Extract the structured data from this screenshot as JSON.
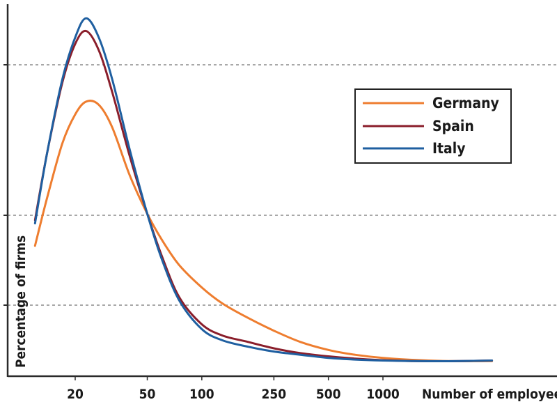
{
  "chart_data": {
    "type": "line",
    "xlabel": "Number of employees",
    "ylabel": "Percentage of firms",
    "x_scale": "log",
    "x_ticks": [
      "20",
      "50",
      "100",
      "250",
      "500",
      "1000"
    ],
    "legend_position": "top-right",
    "grid": "horizontal dashed",
    "series": [
      {
        "name": "Germany",
        "color": "#ee7d2f",
        "x": [
          12,
          14,
          17,
          20,
          23,
          27,
          32,
          40,
          50,
          60,
          75,
          100,
          130,
          180,
          250,
          350,
          500,
          700,
          1000,
          1600,
          2500,
          4000
        ],
        "y": [
          0.37,
          0.52,
          0.69,
          0.78,
          0.82,
          0.81,
          0.74,
          0.59,
          0.47,
          0.39,
          0.31,
          0.24,
          0.19,
          0.145,
          0.105,
          0.07,
          0.045,
          0.03,
          0.02,
          0.013,
          0.01,
          0.01
        ]
      },
      {
        "name": "Spain",
        "color": "#8a1e2b",
        "x": [
          12,
          14,
          17,
          20,
          23,
          27,
          32,
          40,
          50,
          60,
          75,
          100,
          130,
          180,
          250,
          350,
          500,
          700,
          1000,
          1600,
          2500,
          4000
        ],
        "y": [
          0.45,
          0.66,
          0.88,
          1.0,
          1.04,
          0.98,
          0.85,
          0.65,
          0.47,
          0.34,
          0.21,
          0.125,
          0.09,
          0.07,
          0.05,
          0.035,
          0.025,
          0.018,
          0.013,
          0.01,
          0.01,
          0.012
        ]
      },
      {
        "name": "Italy",
        "color": "#1f5fa0",
        "x": [
          12,
          14,
          17,
          20,
          23,
          27,
          32,
          40,
          50,
          60,
          75,
          100,
          130,
          180,
          250,
          350,
          500,
          700,
          1000,
          1600,
          2500,
          4000
        ],
        "y": [
          0.44,
          0.66,
          0.89,
          1.02,
          1.08,
          1.02,
          0.89,
          0.67,
          0.47,
          0.33,
          0.2,
          0.11,
          0.075,
          0.055,
          0.04,
          0.03,
          0.02,
          0.015,
          0.012,
          0.01,
          0.01,
          0.012
        ]
      }
    ]
  }
}
